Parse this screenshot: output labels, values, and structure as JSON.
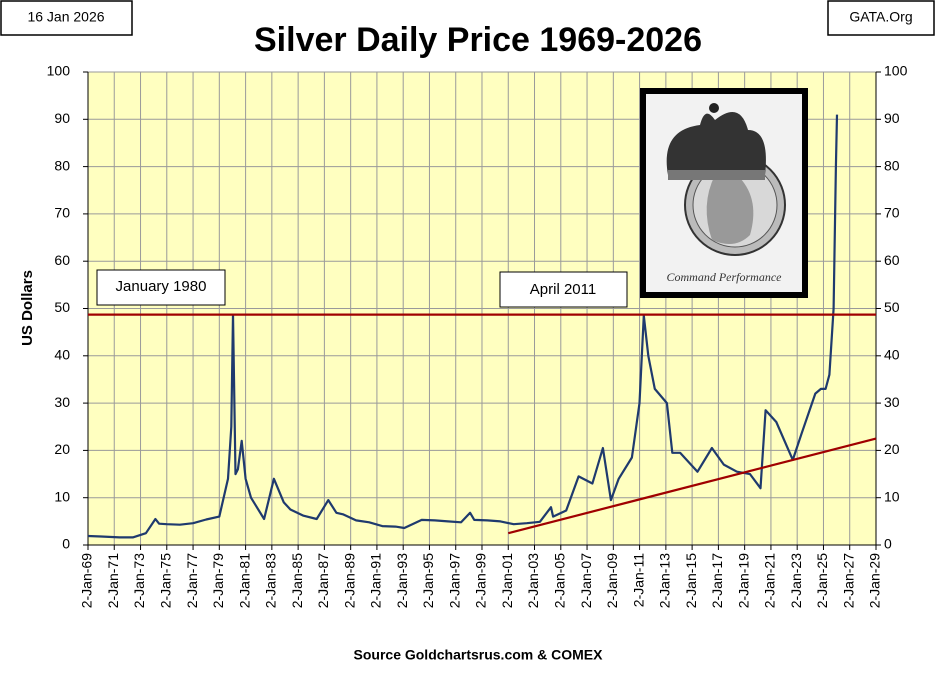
{
  "chart_data": {
    "type": "line",
    "title": "Silver Daily Price 1969-2026",
    "date_label": "16 Jan 2026",
    "site_label": "GATA.Org",
    "y_label": "US Dollars",
    "source": "Source Goldchartsrus.com & COMEX",
    "annotations": [
      "January 1980",
      "April 2011"
    ],
    "inset_caption": "Command Performance",
    "color": "#1f3a6e",
    "x": [
      "1969-01-02",
      "1970-01-02",
      "1971-06-01",
      "1972-06-01",
      "1973-06-01",
      "1974-02-20",
      "1974-06-01",
      "1975-01-02",
      "1976-01-02",
      "1977-01-02",
      "1978-01-02",
      "1979-01-02",
      "1979-09-01",
      "1979-12-01",
      "1980-01-18",
      "1980-03-27",
      "1980-06-01",
      "1980-09-15",
      "1981-01-02",
      "1981-06-01",
      "1982-06-01",
      "1983-03-01",
      "1983-12-01",
      "1984-06-01",
      "1985-06-01",
      "1986-06-01",
      "1987-04-20",
      "1987-12-01",
      "1988-06-01",
      "1989-06-01",
      "1990-06-01",
      "1991-06-01",
      "1992-06-01",
      "1993-02-01",
      "1994-06-01",
      "1995-06-01",
      "1996-06-01",
      "1997-06-01",
      "1998-02-05",
      "1998-06-01",
      "1999-06-01",
      "2000-06-01",
      "2001-06-01",
      "2002-06-01",
      "2003-06-01",
      "2004-04-05",
      "2004-06-01",
      "2005-06-01",
      "2006-05-11",
      "2007-06-01",
      "2008-03-17",
      "2008-10-27",
      "2009-06-01",
      "2010-06-01",
      "2010-12-31",
      "2011-04-28",
      "2011-09-01",
      "2012-03-01",
      "2013-02-01",
      "2013-07-01",
      "2014-02-01",
      "2015-06-01",
      "2016-07-05",
      "2017-06-01",
      "2018-06-01",
      "2019-06-01",
      "2020-03-18",
      "2020-08-07",
      "2021-06-01",
      "2022-09-01",
      "2023-05-01",
      "2024-05-20",
      "2024-10-22",
      "2025-03-01",
      "2025-06-15",
      "2025-10-10",
      "2025-12-15",
      "2026-01-14"
    ],
    "values": [
      1.9,
      1.8,
      1.6,
      1.6,
      2.5,
      5.5,
      4.5,
      4.4,
      4.3,
      4.6,
      5.4,
      6.0,
      14,
      25,
      48.7,
      15,
      16,
      22,
      14,
      10,
      5.5,
      14,
      9,
      7.5,
      6.2,
      5.5,
      9.5,
      6.8,
      6.5,
      5.2,
      4.8,
      4.0,
      3.9,
      3.6,
      5.3,
      5.2,
      5.0,
      4.8,
      6.8,
      5.3,
      5.2,
      5.0,
      4.4,
      4.6,
      4.9,
      8.0,
      6.0,
      7.3,
      14.5,
      13.0,
      20.5,
      9.5,
      14,
      18.5,
      30,
      48.5,
      40,
      33,
      30,
      19.5,
      19.5,
      15.5,
      20.5,
      17,
      15.5,
      15,
      12,
      28.5,
      26,
      18,
      23.5,
      32,
      33,
      33,
      36,
      50,
      80,
      91
    ],
    "hline": 48.7,
    "hline_color": "#a00000",
    "trendline": {
      "x": [
        "2001-01-02",
        "2029-01-02"
      ],
      "values": [
        2.5,
        22.5
      ],
      "color": "#a00000"
    },
    "ylim": [
      0,
      100
    ],
    "yticks": [
      0,
      10,
      20,
      30,
      40,
      50,
      60,
      70,
      80,
      90,
      100
    ],
    "y2lim": [
      0,
      100
    ],
    "y2ticks": [
      0,
      10,
      20,
      30,
      40,
      50,
      60,
      70,
      80,
      90,
      100
    ],
    "xlim": [
      "1969-01-02",
      "2029-01-02"
    ],
    "xticks": [
      {
        "value": "1969-01-02",
        "label": "2-Jan-69"
      },
      {
        "value": "1971-01-02",
        "label": "2-Jan-71"
      },
      {
        "value": "1973-01-02",
        "label": "2-Jan-73"
      },
      {
        "value": "1975-01-02",
        "label": "2-Jan-75"
      },
      {
        "value": "1977-01-02",
        "label": "2-Jan-77"
      },
      {
        "value": "1979-01-02",
        "label": "2-Jan-79"
      },
      {
        "value": "1981-01-02",
        "label": "2-Jan-81"
      },
      {
        "value": "1983-01-02",
        "label": "2-Jan-83"
      },
      {
        "value": "1985-01-02",
        "label": "2-Jan-85"
      },
      {
        "value": "1987-01-02",
        "label": "2-Jan-87"
      },
      {
        "value": "1989-01-02",
        "label": "2-Jan-89"
      },
      {
        "value": "1991-01-02",
        "label": "2-Jan-91"
      },
      {
        "value": "1993-01-02",
        "label": "2-Jan-93"
      },
      {
        "value": "1995-01-02",
        "label": "2-Jan-95"
      },
      {
        "value": "1997-01-02",
        "label": "2-Jan-97"
      },
      {
        "value": "1999-01-02",
        "label": "2-Jan-99"
      },
      {
        "value": "2001-01-02",
        "label": "2-Jan-01"
      },
      {
        "value": "2003-01-02",
        "label": "2-Jan-03"
      },
      {
        "value": "2005-01-02",
        "label": "2-Jan-05"
      },
      {
        "value": "2007-01-02",
        "label": "2-Jan-07"
      },
      {
        "value": "2009-01-02",
        "label": "2-Jan-09"
      },
      {
        "value": "2011-01-02",
        "label": "2-Jan-11"
      },
      {
        "value": "2013-01-02",
        "label": "2-Jan-13"
      },
      {
        "value": "2015-01-02",
        "label": "2-Jan-15"
      },
      {
        "value": "2017-01-02",
        "label": "2-Jan-17"
      },
      {
        "value": "2019-01-02",
        "label": "2-Jan-19"
      },
      {
        "value": "2021-01-02",
        "label": "2-Jan-21"
      },
      {
        "value": "2023-01-02",
        "label": "2-Jan-23"
      },
      {
        "value": "2025-01-02",
        "label": "2-Jan-25"
      },
      {
        "value": "2027-01-02",
        "label": "2-Jan-27"
      },
      {
        "value": "2029-01-02",
        "label": "2-Jan-29"
      }
    ],
    "grid": true
  }
}
